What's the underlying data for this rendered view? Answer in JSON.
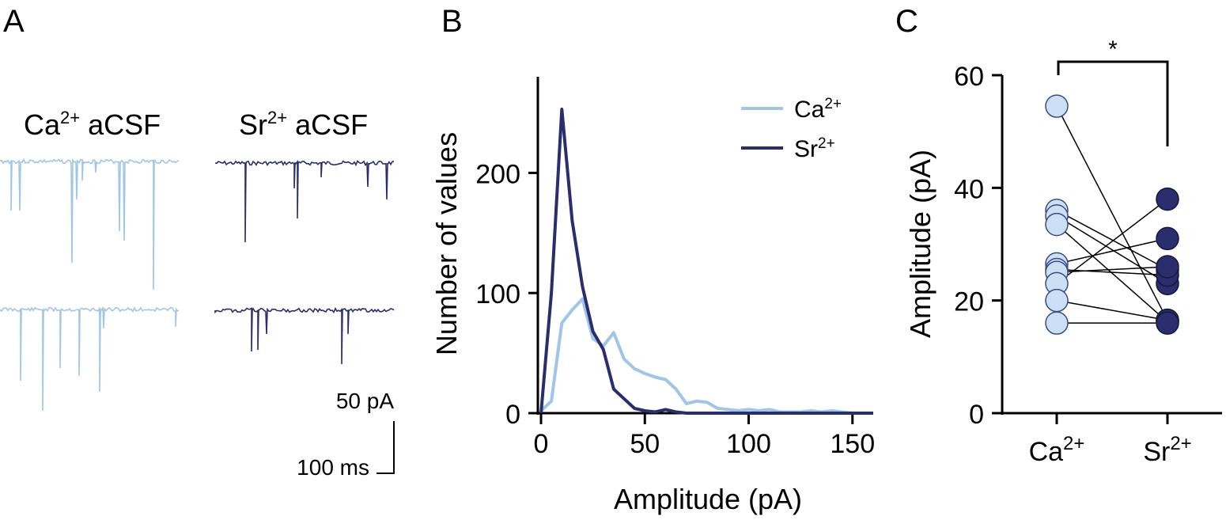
{
  "colors": {
    "ca": "#9fc5e8",
    "sr": "#2a2d6e",
    "ca_fill": "#cddff2",
    "axis": "#000000"
  },
  "panel_a": {
    "letter": "A",
    "ca_label": {
      "ion": "Ca",
      "sup": "2+",
      "rest": " aCSF"
    },
    "sr_label": {
      "ion": "Sr",
      "sup": "2+",
      "rest": " aCSF"
    },
    "scale_amp": "50 pA",
    "scale_time": "100 ms"
  },
  "panel_b": {
    "letter": "B",
    "legend": [
      {
        "ion": "Ca",
        "sup": "2+"
      },
      {
        "ion": "Sr",
        "sup": "2+"
      }
    ]
  },
  "panel_c": {
    "letter": "C",
    "significance": "*"
  },
  "chart_data": [
    {
      "panel": "B",
      "type": "line",
      "title": "",
      "xlabel": "Amplitude (pA)",
      "ylabel": "Number of values",
      "xlim": [
        0,
        160
      ],
      "ylim": [
        0,
        280
      ],
      "xticks": [
        0,
        50,
        100,
        150
      ],
      "yticks": [
        0,
        100,
        200
      ],
      "series": [
        {
          "name": "Ca2+",
          "x": [
            0,
            5,
            10,
            15,
            20,
            25,
            30,
            35,
            40,
            45,
            50,
            55,
            60,
            65,
            70,
            75,
            80,
            85,
            90,
            95,
            100,
            105,
            110,
            115,
            120,
            125,
            130,
            135,
            140,
            145,
            150,
            155,
            160
          ],
          "values": [
            2,
            10,
            75,
            86,
            95,
            62,
            56,
            67,
            45,
            37,
            33,
            30,
            28,
            20,
            8,
            10,
            9,
            4,
            3,
            2,
            3,
            2,
            3,
            1,
            1,
            1,
            2,
            1,
            2,
            1,
            0,
            0,
            0
          ]
        },
        {
          "name": "Sr2+",
          "x": [
            0,
            5,
            10,
            15,
            20,
            25,
            30,
            35,
            40,
            45,
            50,
            55,
            60,
            65,
            70,
            75,
            80,
            160
          ],
          "values": [
            0,
            100,
            253,
            160,
            105,
            68,
            53,
            20,
            12,
            4,
            2,
            1,
            3,
            1,
            0,
            0,
            0,
            0
          ]
        }
      ]
    },
    {
      "panel": "C",
      "type": "scatter",
      "title": "",
      "xlabel": "",
      "ylabel": "Amplitude (pA)",
      "categories": [
        {
          "ion": "Ca",
          "sup": "2+"
        },
        {
          "ion": "Sr",
          "sup": "2+"
        }
      ],
      "ylim": [
        0,
        60
      ],
      "yticks": [
        0,
        20,
        40,
        60
      ],
      "paired_values": [
        [
          54.5,
          16.5
        ],
        [
          36.0,
          25.5
        ],
        [
          35.0,
          23.0
        ],
        [
          33.5,
          16.2
        ],
        [
          26.5,
          31.0
        ],
        [
          25.5,
          24.5
        ],
        [
          25.0,
          26.0
        ],
        [
          23.0,
          38.0
        ],
        [
          20.0,
          16.5
        ],
        [
          16.0,
          16.0
        ]
      ],
      "significance": "*"
    }
  ]
}
